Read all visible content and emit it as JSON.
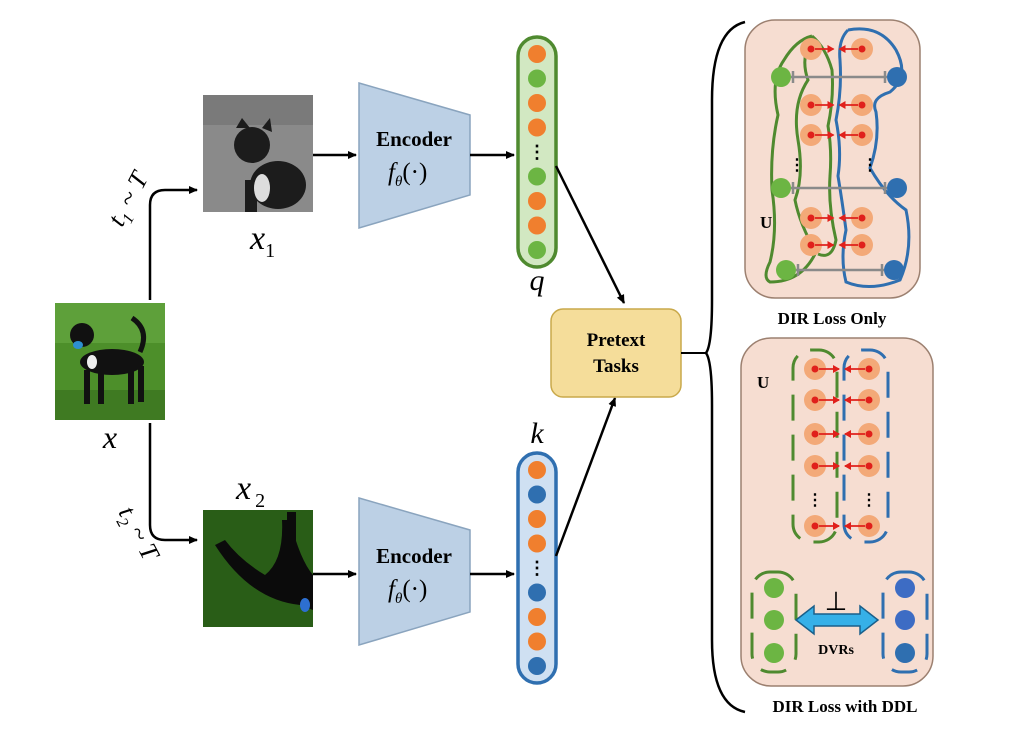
{
  "input": {
    "label": "x"
  },
  "views": [
    {
      "image_label": "x",
      "subscript": "1",
      "transform": "t",
      "transform_sub": "1",
      "transform_tail": " ~ T"
    },
    {
      "image_label": "x",
      "subscript": "2",
      "transform": "t",
      "transform_sub": "2",
      "transform_tail": " ~ T"
    }
  ],
  "encoder": {
    "title": "Encoder",
    "func": "f",
    "func_sub": "θ",
    "func_arg": "(·)"
  },
  "vectors": {
    "query": {
      "label": "q",
      "border": "#4f8a2f",
      "fill": "#d2e8c2",
      "dots": [
        "orange",
        "green",
        "orange",
        "orange",
        "ellipsis",
        "green",
        "orange",
        "orange",
        "green"
      ]
    },
    "key": {
      "label": "k",
      "border": "#2f6fb0",
      "fill": "#cfe0f2",
      "dots": [
        "orange",
        "blue",
        "orange",
        "orange",
        "ellipsis",
        "blue",
        "orange",
        "orange",
        "blue"
      ]
    }
  },
  "pretext": {
    "line1": "Pretext",
    "line2": "Tasks",
    "fill": "#f5dd9a",
    "border": "#c9a94b"
  },
  "panels": {
    "dir_only": {
      "caption": "DIR Loss Only",
      "u_label": "U"
    },
    "dir_ddl": {
      "caption": "DIR Loss with DDL",
      "u_label": "U",
      "perp": "⊥",
      "dvr_label": "DVRs"
    }
  },
  "colors": {
    "orange": "#f07f2e",
    "orange_ring": "#f3a978",
    "green": "#6cb543",
    "blue": "#2f6fb0",
    "red": "#e0201b",
    "gray": "#8a8a8a",
    "panel_fill": "#f6ddd1",
    "panel_border": "#9c8070",
    "encoder_fill": "#bcd0e5",
    "encoder_border": "#8aa4be",
    "double_arrow": "#36b0e8"
  },
  "icons": {
    "photos": [
      "dog-photo",
      "dog-gray-photo",
      "dog-dark-crop-photo"
    ]
  }
}
